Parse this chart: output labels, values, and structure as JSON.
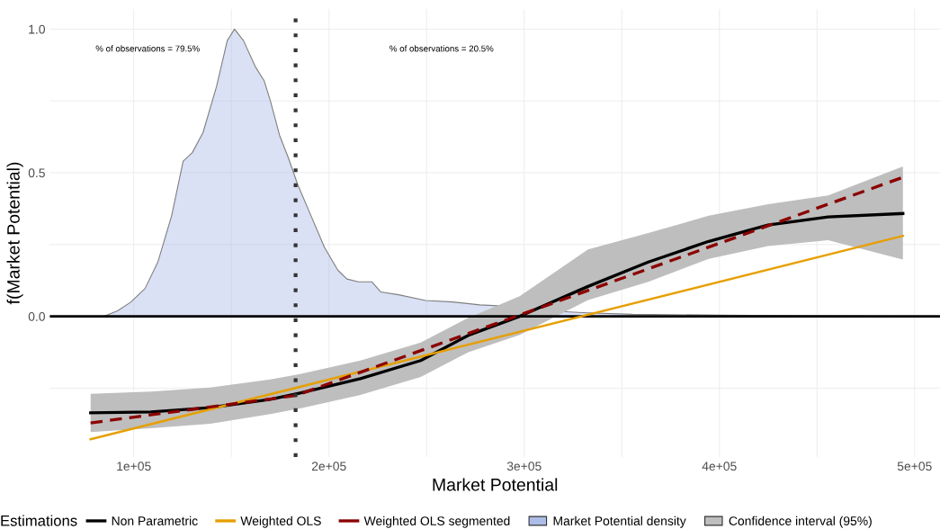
{
  "chart_data": {
    "type": "line",
    "xlabel": "Market Potential",
    "ylabel": "f(Market Potential)",
    "legend_title": "Estimations",
    "legend": "bottom",
    "grid": true,
    "xlim": [
      57000,
      513000
    ],
    "ylim": [
      -0.49,
      1.07
    ],
    "xticks": [
      {
        "value": 100000,
        "label": "1e+05"
      },
      {
        "value": 150000,
        "label": null
      },
      {
        "value": 200000,
        "label": "2e+05"
      },
      {
        "value": 250000,
        "label": null
      },
      {
        "value": 300000,
        "label": "3e+05"
      },
      {
        "value": 350000,
        "label": null
      },
      {
        "value": 400000,
        "label": "4e+05"
      },
      {
        "value": 450000,
        "label": null
      },
      {
        "value": 500000,
        "label": "5e+05"
      }
    ],
    "yticks": [
      {
        "value": -0.25,
        "label": null
      },
      {
        "value": 0,
        "label": "0.0"
      },
      {
        "value": 0.25,
        "label": null
      },
      {
        "value": 0.5,
        "label": "0.5"
      },
      {
        "value": 0.75,
        "label": null
      },
      {
        "value": 1.0,
        "label": "1.0"
      }
    ],
    "series": [
      {
        "name": "Market Potential density",
        "type": "area",
        "color": "#aebde8",
        "x": [
          84800,
          91700,
          98600,
          105800,
          112400,
          119400,
          125300,
          130000,
          135500,
          142400,
          147900,
          151600,
          156200,
          162200,
          166800,
          170000,
          174700,
          179300,
          183900,
          190800,
          197700,
          204600,
          209200,
          215000,
          222000,
          226500,
          235700,
          249500,
          263300,
          277200,
          291000,
          309500,
          332500,
          355500,
          401600,
          447700,
          494000
        ],
        "values": [
          0,
          0.019,
          0.05,
          0.097,
          0.19,
          0.35,
          0.54,
          0.57,
          0.64,
          0.8,
          0.96,
          1.0,
          0.96,
          0.87,
          0.82,
          0.75,
          0.63,
          0.55,
          0.46,
          0.35,
          0.24,
          0.16,
          0.13,
          0.12,
          0.12,
          0.085,
          0.075,
          0.055,
          0.05,
          0.04,
          0.035,
          0.02,
          0.012,
          0.007,
          0.004,
          0.002,
          0.0
        ]
      },
      {
        "name": "Confidence interval (95%)",
        "color": "#bebebe",
        "x": [
          77900,
          108800,
          139200,
          170000,
          185200,
          216100,
          247000,
          271400,
          297700,
          332700,
          363600,
          394500,
          424900,
          455700,
          494000
        ],
        "values": [
          null,
          null,
          null,
          null,
          null,
          null,
          null,
          null,
          null,
          null,
          null,
          null,
          null,
          null,
          null
        ],
        "lower": [
          -0.403,
          -0.39,
          -0.374,
          -0.34,
          -0.321,
          -0.274,
          -0.211,
          -0.125,
          -0.065,
          0.057,
          0.12,
          0.2,
          0.245,
          0.265,
          0.198
        ],
        "upper": [
          -0.27,
          -0.262,
          -0.248,
          -0.22,
          -0.201,
          -0.154,
          -0.091,
          -0.005,
          0.07,
          0.233,
          0.29,
          0.35,
          0.39,
          0.421,
          0.522
        ]
      },
      {
        "name": "Non Parametric",
        "color": "#000000",
        "line_style": "solid",
        "x": [
          77900,
          108800,
          139200,
          170000,
          185200,
          216100,
          247000,
          271400,
          297700,
          332700,
          363600,
          394500,
          424900,
          455700,
          494000
        ],
        "values": [
          -0.336,
          -0.333,
          -0.318,
          -0.289,
          -0.267,
          -0.217,
          -0.154,
          -0.066,
          0.0,
          0.104,
          0.189,
          0.261,
          0.318,
          0.346,
          0.358
        ]
      },
      {
        "name": "Weighted OLS",
        "color": "#e69f00",
        "line_style": "solid",
        "x": [
          77900,
          494000
        ],
        "values": [
          -0.428,
          0.28
        ]
      },
      {
        "name": "Weighted OLS segmented",
        "color": "#8b0000",
        "line_style": "dashed",
        "x": [
          77900,
          182900,
          494000
        ],
        "values": [
          -0.371,
          -0.276,
          0.484
        ]
      }
    ],
    "ref_lines": [
      {
        "axis": "y",
        "value": 0,
        "color": "#000000",
        "line_style": "solid"
      },
      {
        "axis": "x",
        "value": 182900,
        "color": "#333333",
        "line_style": "dotted"
      }
    ],
    "annotations": [
      "% of observations = 79.5%",
      "% of observations = 20.5%"
    ]
  }
}
